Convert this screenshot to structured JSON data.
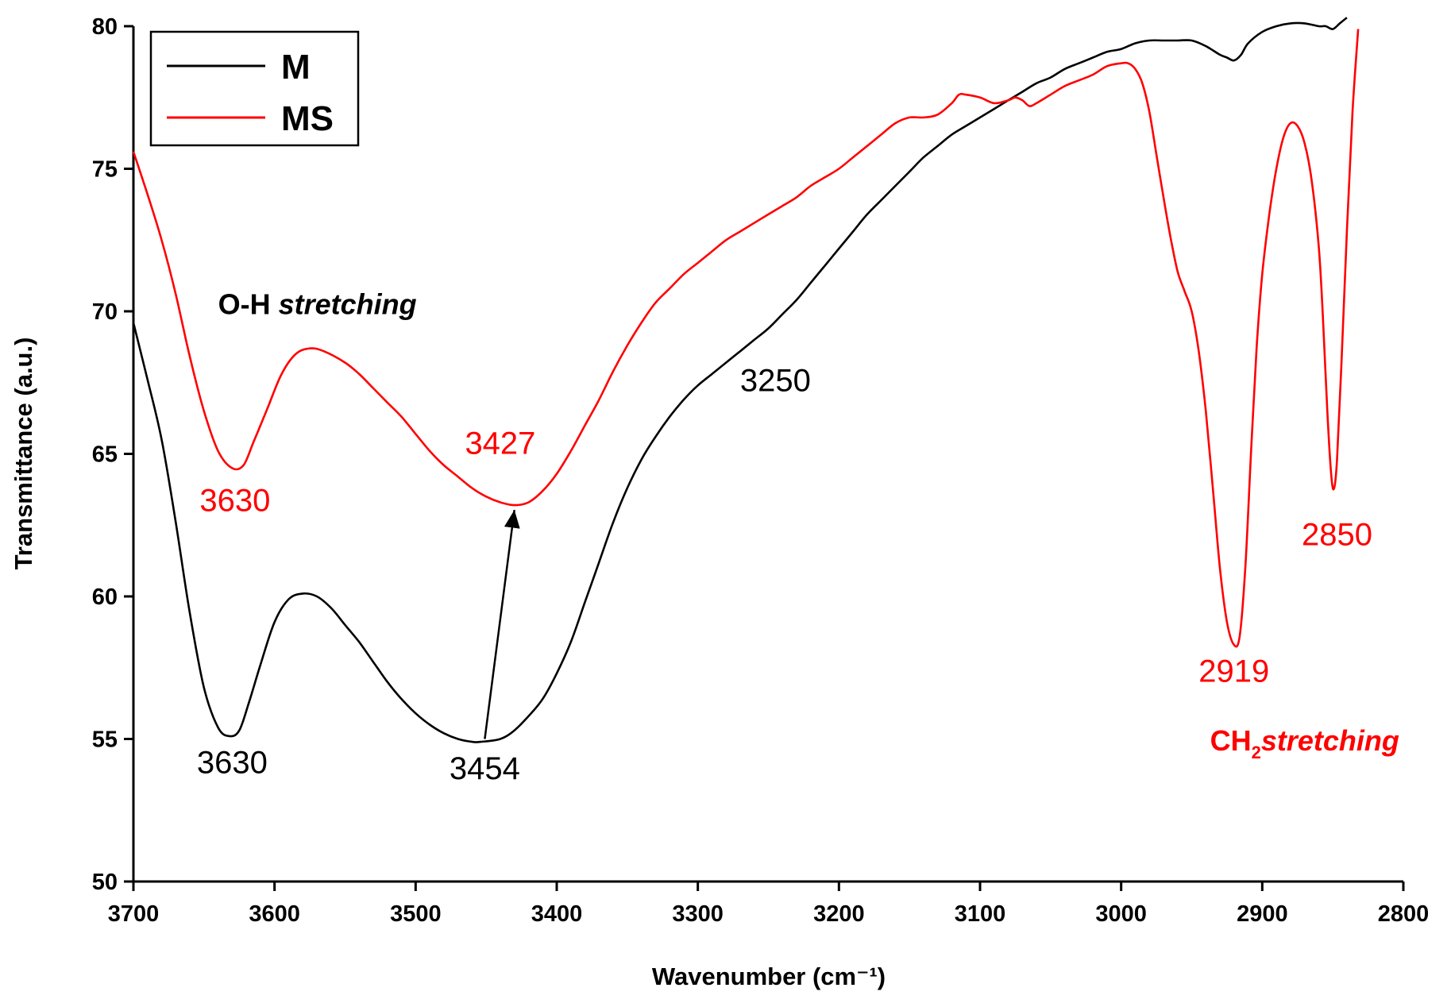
{
  "colors": {
    "M": "#000000",
    "MS": "#ff0000",
    "axis": "#000000"
  },
  "chart_data": {
    "type": "line",
    "title": "",
    "xlabel": "Wavenumber (cm⁻¹)",
    "ylabel": "Transmittance (a.u.)",
    "xlim": [
      3700,
      2800
    ],
    "ylim": [
      50,
      80
    ],
    "x_reversed": true,
    "xticks": [
      3700,
      3600,
      3500,
      3400,
      3300,
      3200,
      3100,
      3000,
      2900,
      2800
    ],
    "yticks": [
      50,
      55,
      60,
      65,
      70,
      75,
      80
    ],
    "xtick_labels": [
      "3700",
      "3600",
      "3500",
      "3400",
      "3300",
      "3200",
      "3100",
      "3000",
      "2900",
      "2800"
    ],
    "ytick_labels": [
      "50",
      "55",
      "60",
      "65",
      "70",
      "75",
      "80"
    ],
    "legend": {
      "position": "top-left",
      "entries": [
        "M",
        "MS"
      ]
    },
    "series": [
      {
        "name": "M",
        "color": "#000000",
        "points": [
          [
            3700,
            69.6
          ],
          [
            3690,
            67.6
          ],
          [
            3680,
            65.5
          ],
          [
            3670,
            62.6
          ],
          [
            3660,
            59.4
          ],
          [
            3650,
            56.8
          ],
          [
            3640,
            55.4
          ],
          [
            3632,
            55.1
          ],
          [
            3625,
            55.3
          ],
          [
            3618,
            56.3
          ],
          [
            3610,
            57.6
          ],
          [
            3600,
            59.1
          ],
          [
            3590,
            59.9
          ],
          [
            3580,
            60.1
          ],
          [
            3570,
            60.0
          ],
          [
            3560,
            59.6
          ],
          [
            3550,
            59.0
          ],
          [
            3540,
            58.4
          ],
          [
            3530,
            57.7
          ],
          [
            3520,
            57.0
          ],
          [
            3510,
            56.4
          ],
          [
            3500,
            55.9
          ],
          [
            3490,
            55.5
          ],
          [
            3480,
            55.2
          ],
          [
            3470,
            55.0
          ],
          [
            3460,
            54.9
          ],
          [
            3454,
            54.9
          ],
          [
            3440,
            55.0
          ],
          [
            3430,
            55.3
          ],
          [
            3420,
            55.8
          ],
          [
            3410,
            56.4
          ],
          [
            3400,
            57.3
          ],
          [
            3390,
            58.4
          ],
          [
            3380,
            59.8
          ],
          [
            3370,
            61.2
          ],
          [
            3360,
            62.6
          ],
          [
            3350,
            63.8
          ],
          [
            3340,
            64.8
          ],
          [
            3330,
            65.6
          ],
          [
            3320,
            66.3
          ],
          [
            3310,
            66.9
          ],
          [
            3300,
            67.4
          ],
          [
            3290,
            67.8
          ],
          [
            3280,
            68.2
          ],
          [
            3270,
            68.6
          ],
          [
            3260,
            69.0
          ],
          [
            3250,
            69.4
          ],
          [
            3240,
            69.9
          ],
          [
            3230,
            70.4
          ],
          [
            3220,
            71.0
          ],
          [
            3210,
            71.6
          ],
          [
            3200,
            72.2
          ],
          [
            3190,
            72.8
          ],
          [
            3180,
            73.4
          ],
          [
            3170,
            73.9
          ],
          [
            3160,
            74.4
          ],
          [
            3150,
            74.9
          ],
          [
            3140,
            75.4
          ],
          [
            3130,
            75.8
          ],
          [
            3120,
            76.2
          ],
          [
            3110,
            76.5
          ],
          [
            3100,
            76.8
          ],
          [
            3090,
            77.1
          ],
          [
            3080,
            77.4
          ],
          [
            3070,
            77.7
          ],
          [
            3060,
            78.0
          ],
          [
            3050,
            78.2
          ],
          [
            3040,
            78.5
          ],
          [
            3030,
            78.7
          ],
          [
            3020,
            78.9
          ],
          [
            3010,
            79.1
          ],
          [
            3000,
            79.2
          ],
          [
            2990,
            79.4
          ],
          [
            2980,
            79.5
          ],
          [
            2970,
            79.5
          ],
          [
            2960,
            79.5
          ],
          [
            2950,
            79.5
          ],
          [
            2940,
            79.3
          ],
          [
            2930,
            79.0
          ],
          [
            2925,
            78.9
          ],
          [
            2920,
            78.8
          ],
          [
            2915,
            79.0
          ],
          [
            2910,
            79.4
          ],
          [
            2900,
            79.8
          ],
          [
            2890,
            80.0
          ],
          [
            2880,
            80.1
          ],
          [
            2870,
            80.1
          ],
          [
            2860,
            80.0
          ],
          [
            2855,
            80.0
          ],
          [
            2850,
            79.9
          ],
          [
            2845,
            80.1
          ],
          [
            2840,
            80.3
          ]
        ]
      },
      {
        "name": "MS",
        "color": "#ff0000",
        "points": [
          [
            3700,
            75.6
          ],
          [
            3690,
            74.1
          ],
          [
            3680,
            72.5
          ],
          [
            3670,
            70.6
          ],
          [
            3660,
            68.4
          ],
          [
            3650,
            66.5
          ],
          [
            3640,
            65.1
          ],
          [
            3630,
            64.5
          ],
          [
            3622,
            64.6
          ],
          [
            3615,
            65.4
          ],
          [
            3605,
            66.6
          ],
          [
            3595,
            67.8
          ],
          [
            3585,
            68.5
          ],
          [
            3575,
            68.7
          ],
          [
            3565,
            68.6
          ],
          [
            3550,
            68.2
          ],
          [
            3540,
            67.8
          ],
          [
            3530,
            67.3
          ],
          [
            3520,
            66.8
          ],
          [
            3510,
            66.3
          ],
          [
            3500,
            65.7
          ],
          [
            3490,
            65.1
          ],
          [
            3480,
            64.6
          ],
          [
            3470,
            64.2
          ],
          [
            3460,
            63.8
          ],
          [
            3450,
            63.5
          ],
          [
            3440,
            63.3
          ],
          [
            3430,
            63.2
          ],
          [
            3420,
            63.3
          ],
          [
            3410,
            63.7
          ],
          [
            3400,
            64.3
          ],
          [
            3390,
            65.1
          ],
          [
            3380,
            66.0
          ],
          [
            3370,
            66.9
          ],
          [
            3360,
            67.9
          ],
          [
            3350,
            68.8
          ],
          [
            3340,
            69.6
          ],
          [
            3330,
            70.3
          ],
          [
            3320,
            70.8
          ],
          [
            3310,
            71.3
          ],
          [
            3300,
            71.7
          ],
          [
            3290,
            72.1
          ],
          [
            3280,
            72.5
          ],
          [
            3270,
            72.8
          ],
          [
            3260,
            73.1
          ],
          [
            3250,
            73.4
          ],
          [
            3240,
            73.7
          ],
          [
            3230,
            74.0
          ],
          [
            3220,
            74.4
          ],
          [
            3210,
            74.7
          ],
          [
            3200,
            75.0
          ],
          [
            3190,
            75.4
          ],
          [
            3180,
            75.8
          ],
          [
            3170,
            76.2
          ],
          [
            3160,
            76.6
          ],
          [
            3150,
            76.8
          ],
          [
            3140,
            76.8
          ],
          [
            3130,
            76.9
          ],
          [
            3120,
            77.3
          ],
          [
            3115,
            77.6
          ],
          [
            3110,
            77.6
          ],
          [
            3100,
            77.5
          ],
          [
            3090,
            77.3
          ],
          [
            3080,
            77.4
          ],
          [
            3075,
            77.5
          ],
          [
            3070,
            77.4
          ],
          [
            3065,
            77.2
          ],
          [
            3060,
            77.3
          ],
          [
            3050,
            77.6
          ],
          [
            3040,
            77.9
          ],
          [
            3030,
            78.1
          ],
          [
            3020,
            78.3
          ],
          [
            3010,
            78.6
          ],
          [
            3000,
            78.7
          ],
          [
            2995,
            78.7
          ],
          [
            2990,
            78.5
          ],
          [
            2985,
            78.0
          ],
          [
            2980,
            77.0
          ],
          [
            2975,
            75.5
          ],
          [
            2970,
            74.0
          ],
          [
            2965,
            72.6
          ],
          [
            2960,
            71.4
          ],
          [
            2955,
            70.7
          ],
          [
            2950,
            70.0
          ],
          [
            2945,
            68.6
          ],
          [
            2940,
            66.5
          ],
          [
            2935,
            63.8
          ],
          [
            2930,
            61.0
          ],
          [
            2925,
            59.1
          ],
          [
            2920,
            58.3
          ],
          [
            2916,
            58.6
          ],
          [
            2912,
            61.0
          ],
          [
            2908,
            65.0
          ],
          [
            2904,
            68.7
          ],
          [
            2900,
            71.3
          ],
          [
            2895,
            73.4
          ],
          [
            2890,
            75.0
          ],
          [
            2885,
            76.1
          ],
          [
            2880,
            76.6
          ],
          [
            2875,
            76.5
          ],
          [
            2870,
            75.9
          ],
          [
            2865,
            74.6
          ],
          [
            2860,
            72.3
          ],
          [
            2857,
            69.8
          ],
          [
            2854,
            66.6
          ],
          [
            2851,
            64.2
          ],
          [
            2849,
            63.8
          ],
          [
            2847,
            64.8
          ],
          [
            2844,
            68.0
          ],
          [
            2840,
            72.8
          ],
          [
            2836,
            77.0
          ],
          [
            2832,
            79.9
          ]
        ]
      }
    ],
    "annotations": [
      {
        "id": "ms3630",
        "text": "3630",
        "color": "#ff0000",
        "x": 3628,
        "y": 63.0
      },
      {
        "id": "ms3427",
        "text": "3427",
        "color": "#ff0000",
        "x": 3440,
        "y": 65.0
      },
      {
        "id": "ms2919",
        "text": "2919",
        "color": "#ff0000",
        "x": 2920,
        "y": 57.0
      },
      {
        "id": "ms2850",
        "text": "2850",
        "color": "#ff0000",
        "x": 2847,
        "y": 61.8
      },
      {
        "id": "m3630",
        "text": "3630",
        "color": "#000000",
        "x": 3630,
        "y": 53.8
      },
      {
        "id": "m3454",
        "text": "3454",
        "color": "#000000",
        "x": 3451,
        "y": 53.6
      },
      {
        "id": "m3250",
        "text": "3250",
        "color": "#000000",
        "x": 3245,
        "y": 67.2
      }
    ],
    "arrow": {
      "from": [
        3451,
        55.0
      ],
      "to": [
        3430,
        63.2
      ]
    },
    "notes": {
      "oh": {
        "plain": "O-H ",
        "italic": "stretching",
        "color": "#000000",
        "x": 3640,
        "y": 69.9
      },
      "ch2": {
        "plain": "CH",
        "sub": "2",
        "italic": "stretching",
        "color": "#ff0000",
        "x": 2937,
        "y": 54.6
      }
    }
  }
}
